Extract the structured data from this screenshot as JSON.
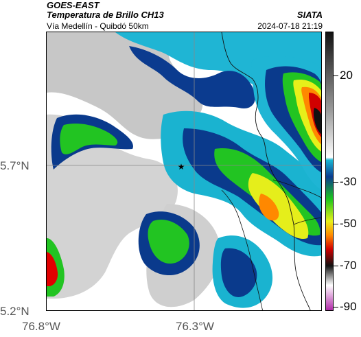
{
  "header": {
    "satellite": "GOES-EAST",
    "product": "Temperatura de Brillo CH13",
    "region": "Vía Medellín - Quibdó 50km",
    "brand": "SIATA",
    "timestamp": "2024-07-18 21:19"
  },
  "map": {
    "lat_labels": [
      "5.7°N",
      "5.2°N"
    ],
    "lon_labels": [
      "76.8°W",
      "76.3°W"
    ],
    "marker": "star-marker"
  },
  "colorbar": {
    "ticks": [
      "20",
      "-30",
      "-50",
      "-70",
      "-90"
    ],
    "colors": {
      "white": "#ffffff",
      "gray": "#bdbdbd",
      "cyan": "#19b7d3",
      "blue": "#0b3b8f",
      "green": "#1cc61c",
      "yellow": "#e7f01a",
      "orange": "#ff8a00",
      "red": "#d10000",
      "black": "#111111",
      "magenta": "#b12aa8"
    }
  }
}
